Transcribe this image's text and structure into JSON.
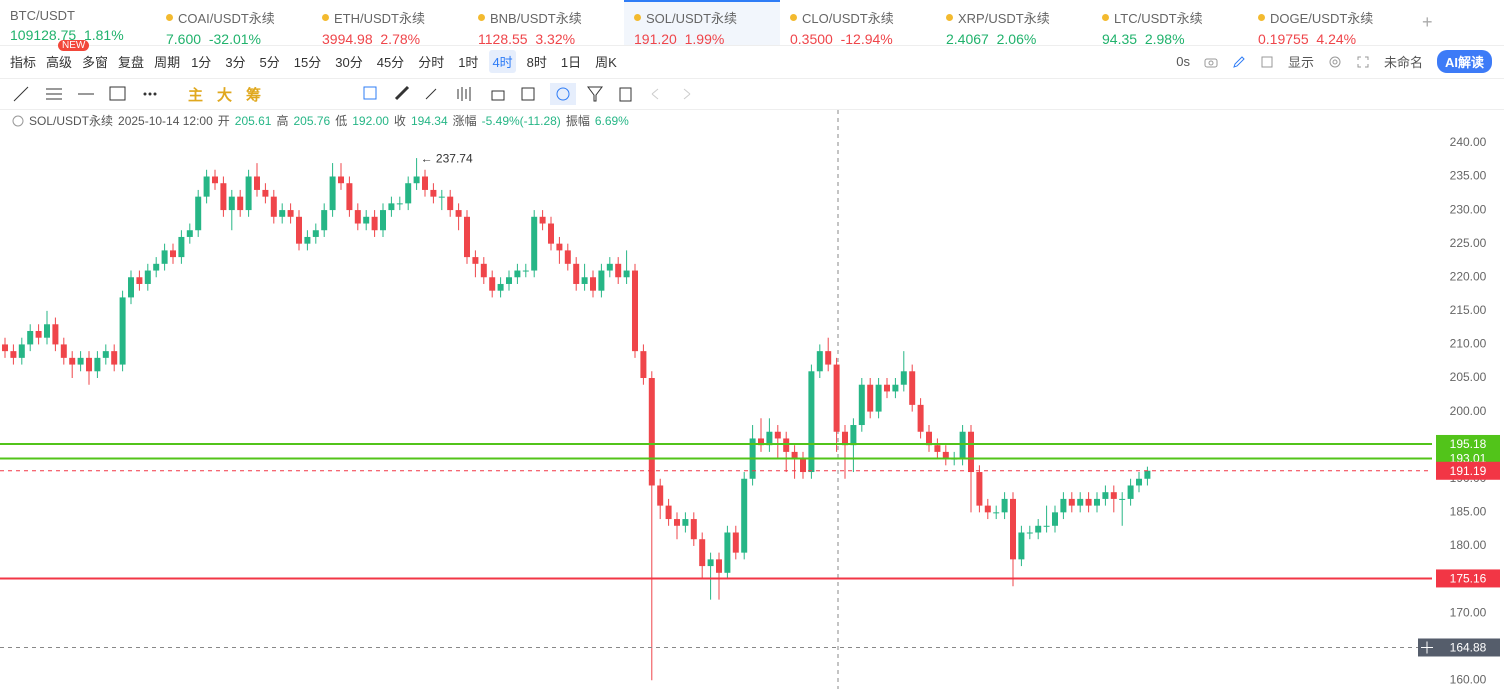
{
  "tickers": [
    {
      "name": "BTC/USDT",
      "price": "109128.75",
      "change": "1.81%",
      "color": "#20b26c"
    },
    {
      "name": "COAI/USDT永续",
      "price": "7.600",
      "change": "-32.01%",
      "color": "#20b26c"
    },
    {
      "name": "ETH/USDT永续",
      "price": "3994.98",
      "change": "2.78%",
      "color": "#ef454a"
    },
    {
      "name": "BNB/USDT永续",
      "price": "1128.55",
      "change": "3.32%",
      "color": "#ef454a"
    },
    {
      "name": "SOL/USDT永续",
      "price": "191.20",
      "change": "1.99%",
      "color": "#ef454a",
      "active": true
    },
    {
      "name": "CLO/USDT永续",
      "price": "0.3500",
      "change": "-12.94%",
      "color": "#ef454a"
    },
    {
      "name": "XRP/USDT永续",
      "price": "2.4067",
      "change": "2.06%",
      "color": "#20b26c"
    },
    {
      "name": "LTC/USDT永续",
      "price": "94.35",
      "change": "2.98%",
      "color": "#20b26c"
    },
    {
      "name": "DOGE/USDT永续",
      "price": "0.19755",
      "change": "4.24%",
      "color": "#ef454a"
    }
  ],
  "toolbar": {
    "badge": "NEW",
    "left": [
      "指标",
      "高级",
      "多窗",
      "复盘",
      "周期"
    ],
    "intervals": [
      "1分",
      "3分",
      "5分",
      "15分",
      "30分",
      "45分",
      "分时",
      "1时",
      "4时",
      "8时",
      "1日",
      "周K"
    ],
    "active_interval": "4时",
    "timer": "0s",
    "display": "显示",
    "layout_name": "未命名",
    "ai_button": "AI解读"
  },
  "drawing_tools": [
    "主",
    "大",
    "筹"
  ],
  "info": {
    "symbol": "SOL/USDT永续",
    "time": "2025-10-14 12:00",
    "fields": [
      {
        "label": "开",
        "value": "205.61"
      },
      {
        "label": "高",
        "value": "205.76"
      },
      {
        "label": "低",
        "value": "192.00"
      },
      {
        "label": "收",
        "value": "194.34"
      },
      {
        "label": "涨幅",
        "value": "-5.49%(-11.28)"
      },
      {
        "label": "振幅",
        "value": "6.69%"
      }
    ]
  },
  "chart_data": {
    "type": "candlestick",
    "up_color": "#26b686",
    "down_color": "#ef454a",
    "open": [
      210,
      209,
      208,
      210,
      212,
      211,
      213,
      210,
      208,
      207,
      208,
      206,
      208,
      209,
      207,
      217,
      220,
      219,
      221,
      222,
      224,
      223,
      226,
      227,
      232,
      235,
      234,
      230,
      232,
      230,
      235,
      233,
      232,
      229,
      230,
      229,
      225,
      226,
      227,
      230,
      235,
      234,
      230,
      228,
      229,
      227,
      230,
      231,
      231,
      234,
      235,
      233,
      232,
      232,
      230,
      229,
      223,
      222,
      220,
      218,
      219,
      220,
      221,
      221,
      229,
      228,
      225,
      224,
      222,
      219,
      220,
      218,
      221,
      222,
      220,
      221,
      209,
      205,
      189,
      186,
      184,
      183,
      184,
      181,
      177,
      178,
      176,
      182,
      179,
      190,
      196,
      195,
      197,
      196,
      194,
      193,
      191,
      206,
      209,
      207,
      197,
      195,
      198,
      204,
      200,
      204,
      203,
      204,
      206,
      201,
      197,
      195,
      194,
      193,
      193,
      197,
      191,
      186,
      185,
      185,
      187,
      178,
      182,
      182,
      183,
      183,
      185,
      187,
      186,
      187,
      186,
      187,
      188,
      187,
      187,
      189,
      190
    ],
    "high": [
      211,
      210,
      211,
      213,
      213,
      215,
      214,
      211,
      209,
      209,
      209,
      209,
      210,
      210,
      218,
      221,
      221,
      222,
      223,
      225,
      225,
      227,
      228,
      233,
      236,
      236,
      235,
      233,
      233,
      236,
      237,
      234,
      233,
      231,
      231,
      230,
      227,
      228,
      231,
      237,
      237,
      235,
      231,
      230,
      230,
      231,
      232,
      232,
      235,
      237.74,
      236,
      234,
      233,
      233,
      231,
      230,
      224,
      223,
      221,
      220,
      221,
      222,
      222,
      230,
      230,
      229,
      226,
      225,
      223,
      222,
      221,
      222,
      223,
      223,
      224,
      222,
      210,
      206,
      190,
      187,
      185,
      185,
      185,
      182,
      179,
      179,
      183,
      183,
      191,
      198,
      199,
      199,
      198,
      197,
      195,
      194,
      207,
      210,
      211,
      208,
      198,
      199,
      205,
      205,
      205,
      205,
      205,
      209,
      207,
      202,
      198,
      196,
      195,
      194,
      198,
      198,
      192,
      187,
      186,
      188,
      188,
      183,
      183,
      184,
      186,
      186,
      188,
      188,
      188,
      188,
      188,
      189,
      189,
      188,
      190,
      191,
      191.8
    ],
    "low": [
      208,
      207,
      207,
      209,
      210,
      210,
      209,
      207,
      205,
      206,
      204,
      205,
      207,
      206,
      206,
      216,
      218,
      218,
      220,
      221,
      222,
      222,
      225,
      226,
      231,
      233,
      229,
      227,
      229,
      229,
      232,
      231,
      228,
      228,
      228,
      224,
      224,
      225,
      226,
      229,
      233,
      229,
      227,
      227,
      226,
      226,
      229,
      230,
      230,
      233,
      232,
      231,
      230,
      229,
      227,
      222,
      220,
      219,
      217,
      217,
      218,
      219,
      220,
      220,
      227,
      224,
      222,
      221,
      218,
      218,
      217,
      217,
      220,
      219,
      219,
      208,
      204,
      160,
      184,
      183,
      181,
      182,
      180,
      175,
      172,
      172,
      175,
      178,
      178,
      189,
      194,
      194,
      193,
      191,
      190,
      190,
      190,
      205,
      206,
      194,
      190,
      191,
      197,
      199,
      199,
      202,
      202,
      203,
      200,
      196,
      194,
      193,
      192,
      192,
      192,
      185,
      185,
      184,
      184,
      184,
      174,
      177,
      181,
      181,
      182,
      182,
      184,
      185,
      185,
      185,
      185,
      186,
      185,
      183,
      186,
      188,
      189
    ],
    "close": [
      209,
      208,
      210,
      212,
      211,
      213,
      210,
      208,
      207,
      208,
      206,
      208,
      209,
      207,
      217,
      220,
      219,
      221,
      222,
      224,
      223,
      226,
      227,
      232,
      235,
      234,
      230,
      232,
      230,
      235,
      233,
      232,
      229,
      230,
      229,
      225,
      226,
      227,
      230,
      235,
      234,
      230,
      228,
      229,
      227,
      230,
      231,
      231,
      234,
      235,
      233,
      232,
      232,
      230,
      229,
      223,
      222,
      220,
      218,
      219,
      220,
      221,
      221,
      229,
      228,
      225,
      224,
      222,
      219,
      220,
      218,
      221,
      222,
      220,
      221,
      209,
      205,
      189,
      186,
      184,
      183,
      184,
      181,
      177,
      178,
      176,
      182,
      179,
      190,
      196,
      195,
      197,
      196,
      194,
      193,
      191,
      206,
      209,
      207,
      197,
      195,
      198,
      204,
      200,
      204,
      203,
      204,
      206,
      201,
      197,
      195,
      194,
      193,
      193,
      197,
      191,
      186,
      185,
      185,
      187,
      178,
      182,
      182,
      183,
      183,
      185,
      187,
      186,
      187,
      186,
      187,
      188,
      187,
      187,
      189,
      190,
      191.2
    ],
    "max_label": "← 237.74",
    "ylim": [
      158.7,
      244.9
    ],
    "yticks": [
      {
        "value": 160,
        "label": "160.00"
      },
      {
        "value": 165,
        "label": "165.00"
      },
      {
        "value": 170,
        "label": "170.00"
      },
      {
        "value": 175,
        "label": "175.00"
      },
      {
        "value": 180,
        "label": "180.00"
      },
      {
        "value": 185,
        "label": "185.00"
      },
      {
        "value": 190,
        "label": "190.00"
      },
      {
        "value": 195,
        "label": "195.00"
      },
      {
        "value": 200,
        "label": "200.00"
      },
      {
        "value": 205,
        "label": "205.00"
      },
      {
        "value": 210,
        "label": "210.00"
      },
      {
        "value": 215,
        "label": "215.00"
      },
      {
        "value": 220,
        "label": "220.00"
      },
      {
        "value": 225,
        "label": "225.00"
      },
      {
        "value": 230,
        "label": "230.00"
      },
      {
        "value": 235,
        "label": "235.00"
      },
      {
        "value": 240,
        "label": "240.00"
      }
    ],
    "grid": false,
    "levels": [
      {
        "value": 195.18,
        "color": "#52c41a",
        "style": "solid"
      },
      {
        "value": 193.01,
        "color": "#52c41a",
        "style": "solid"
      },
      {
        "value": 191.19,
        "color": "#f23645",
        "style": "dashed"
      },
      {
        "value": 175.16,
        "color": "#f23645",
        "style": "solid"
      },
      {
        "value": 164.88,
        "color": "#555d6b",
        "style": "crosshair"
      }
    ]
  }
}
